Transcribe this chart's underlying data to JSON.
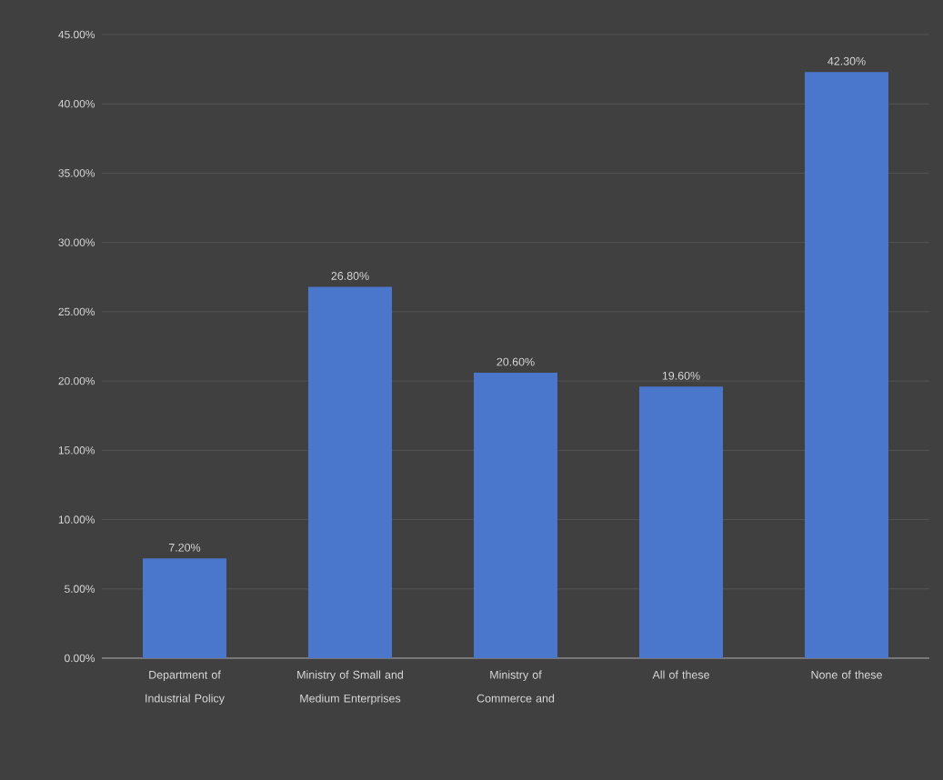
{
  "chart_data": {
    "type": "bar",
    "categories": [
      "Department  of Industrial Policy",
      "Ministry of Small and Medium Enterprises",
      "Ministry of Commerce and",
      "All of these",
      "None of these"
    ],
    "values": [
      7.2,
      26.8,
      20.6,
      19.6,
      42.3
    ],
    "value_labels": [
      "7.20%",
      "26.80%",
      "20.60%",
      "19.60%",
      "42.30%"
    ],
    "color": "#4a76cc",
    "ylim": [
      0,
      45
    ],
    "yticks": [
      {
        "value": 0,
        "label": "0.00%"
      },
      {
        "value": 5,
        "label": "5.00%"
      },
      {
        "value": 10,
        "label": "10.00%"
      },
      {
        "value": 15,
        "label": "15.00%"
      },
      {
        "value": 20,
        "label": "20.00%"
      },
      {
        "value": 25,
        "label": "25.00%"
      },
      {
        "value": 30,
        "label": "30.00%"
      },
      {
        "value": 35,
        "label": "35.00%"
      },
      {
        "value": 40,
        "label": "40.00%"
      },
      {
        "value": 45,
        "label": "45.00%"
      }
    ],
    "grid": "y"
  }
}
